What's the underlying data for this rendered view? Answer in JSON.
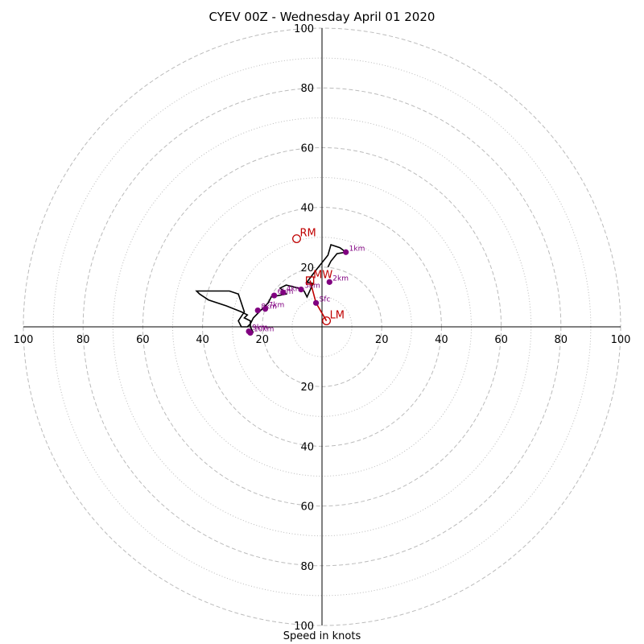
{
  "chart_data": {
    "type": "scatter",
    "title": "CYEV 00Z - Wednesday April 01 2020",
    "xlabel": "Speed in knots",
    "ylabel": "",
    "xlim": [
      -100,
      100
    ],
    "ylim": [
      -100,
      100
    ],
    "ring_labels": [
      20,
      40,
      60,
      80,
      100
    ],
    "grid": true,
    "hodograph_path": [
      [
        2,
        20
      ],
      [
        3,
        22
      ],
      [
        5,
        24.5
      ],
      [
        8,
        25
      ],
      [
        6,
        26.5
      ],
      [
        3,
        27.5
      ],
      [
        2,
        24
      ],
      [
        -2,
        19
      ],
      [
        -5,
        15
      ],
      [
        -3,
        14.5
      ],
      [
        -5,
        10
      ],
      [
        -6,
        12
      ],
      [
        -8,
        13
      ],
      [
        -12,
        14
      ],
      [
        -14,
        13
      ],
      [
        -12,
        11
      ],
      [
        -17,
        10
      ],
      [
        -18,
        8
      ],
      [
        -20,
        6
      ],
      [
        -23,
        3
      ],
      [
        -24,
        1
      ],
      [
        -25,
        0
      ],
      [
        -27,
        0
      ],
      [
        -28,
        2
      ],
      [
        -26,
        5
      ],
      [
        -27,
        8
      ],
      [
        -28,
        11
      ],
      [
        -31,
        12
      ],
      [
        -42,
        12
      ],
      [
        -41,
        11
      ],
      [
        -38,
        9
      ],
      [
        -32,
        7
      ],
      [
        -27,
        5
      ],
      [
        -25,
        4
      ],
      [
        -26,
        3
      ],
      [
        -24,
        2
      ],
      [
        -24,
        0
      ],
      [
        -23,
        -2
      ]
    ],
    "height_points": [
      {
        "label": "Sfc",
        "x": -2,
        "y": 8
      },
      {
        "label": "1km",
        "x": 8,
        "y": 25
      },
      {
        "label": "2km",
        "x": 2.5,
        "y": 15
      },
      {
        "label": "3km",
        "x": -7,
        "y": 12.5
      },
      {
        "label": "4km",
        "x": -13,
        "y": 11.5
      },
      {
        "label": "6km",
        "x": -16,
        "y": 10.5
      },
      {
        "label": "7km",
        "x": -19,
        "y": 6
      },
      {
        "label": "8km",
        "x": -21.5,
        "y": 5.5
      },
      {
        "label": "9km",
        "x": -24.5,
        "y": -1.5
      },
      {
        "label": "10km",
        "x": -24,
        "y": -2
      }
    ],
    "storm_motion": {
      "RM": {
        "label": "RM",
        "x": -8.5,
        "y": 29.5
      },
      "LM": {
        "label": "LM",
        "x": 1.5,
        "y": 2
      },
      "MW": {
        "label": "MW",
        "x": -4,
        "y": 15.5
      }
    },
    "colors": {
      "path": "#000000",
      "points": "#800080",
      "storm": "#c00000",
      "grid": "#bbbbbb"
    }
  }
}
